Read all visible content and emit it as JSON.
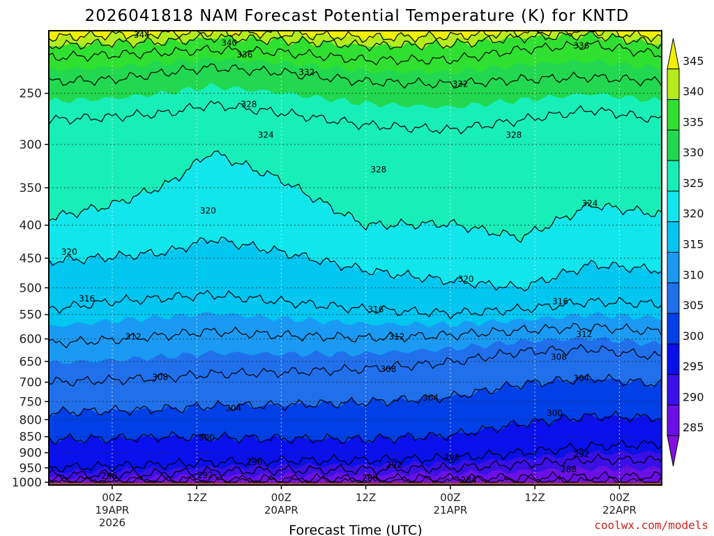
{
  "title": "2026041818 NAM Forecast Potential Temperature (K) for KNTD",
  "xlabel": "Forecast Time (UTC)",
  "credit": "coolwx.com/models",
  "chart_data": {
    "type": "heatmap",
    "title": "2026041818 NAM Forecast Potential Temperature (K) for KNTD",
    "xlabel": "Forecast Time (UTC)",
    "ylabel": "",
    "y_axis": {
      "name": "pressure",
      "scale": "log",
      "reversed": true,
      "range": [
        1010,
        200
      ],
      "ticks": [
        250,
        300,
        350,
        400,
        450,
        500,
        550,
        600,
        650,
        700,
        750,
        800,
        850,
        900,
        950,
        1000
      ]
    },
    "x_axis": {
      "range_hours": [
        -3,
        84
      ],
      "ticks": [
        {
          "hour": 6,
          "label": "00Z",
          "sub1": "19APR",
          "sub2": "2026"
        },
        {
          "hour": 18,
          "label": "12Z",
          "sub1": "",
          "sub2": ""
        },
        {
          "hour": 30,
          "label": "00Z",
          "sub1": "20APR",
          "sub2": ""
        },
        {
          "hour": 42,
          "label": "12Z",
          "sub1": "",
          "sub2": ""
        },
        {
          "hour": 54,
          "label": "00Z",
          "sub1": "21APR",
          "sub2": ""
        },
        {
          "hour": 66,
          "label": "12Z",
          "sub1": "",
          "sub2": ""
        },
        {
          "hour": 78,
          "label": "00Z",
          "sub1": "22APR",
          "sub2": ""
        }
      ]
    },
    "grid": true,
    "colorbar": {
      "ticks": [
        345,
        340,
        335,
        330,
        325,
        320,
        315,
        310,
        305,
        300,
        295,
        290,
        285
      ],
      "levels": [
        {
          "min": 280,
          "max": 285,
          "color": "#8410e0"
        },
        {
          "min": 285,
          "max": 290,
          "color": "#6a10e6"
        },
        {
          "min": 290,
          "max": 295,
          "color": "#3a10e8"
        },
        {
          "min": 295,
          "max": 300,
          "color": "#0a10ec"
        },
        {
          "min": 300,
          "max": 305,
          "color": "#0040e6"
        },
        {
          "min": 305,
          "max": 310,
          "color": "#2070ec"
        },
        {
          "min": 310,
          "max": 315,
          "color": "#1a9af2"
        },
        {
          "min": 315,
          "max": 320,
          "color": "#00c6f0"
        },
        {
          "min": 320,
          "max": 325,
          "color": "#10e6ec"
        },
        {
          "min": 325,
          "max": 330,
          "color": "#18eeb8"
        },
        {
          "min": 330,
          "max": 335,
          "color": "#22d850"
        },
        {
          "min": 335,
          "max": 340,
          "color": "#30e030"
        },
        {
          "min": 340,
          "max": 345,
          "color": "#b4ec1c"
        },
        {
          "min": 345,
          "max": 350,
          "color": "#f0f000"
        }
      ]
    },
    "ground_color": "#a0522d",
    "isentropes": [
      {
        "theta": 284,
        "pressure": [
          999,
          999,
          998,
          998,
          997,
          997,
          996,
          997,
          998,
          999
        ]
      },
      {
        "theta": 288,
        "pressure": [
          992,
          992,
          991,
          990,
          989,
          987,
          986,
          984,
          981,
          979
        ]
      },
      {
        "theta": 292,
        "pressure": [
          975,
          972,
          968,
          962,
          958,
          956,
          950,
          938,
          922,
          925
        ]
      },
      {
        "theta": 296,
        "pressure": [
          950,
          944,
          938,
          932,
          926,
          924,
          918,
          900,
          880,
          872
        ]
      },
      {
        "theta": 300,
        "pressure": [
          858,
          856,
          850,
          852,
          856,
          858,
          846,
          812,
          790,
          795
        ]
      },
      {
        "theta": 304,
        "pressure": [
          780,
          775,
          770,
          762,
          760,
          752,
          738,
          705,
          690,
          705
        ]
      },
      {
        "theta": 308,
        "pressure": [
          700,
          695,
          688,
          680,
          676,
          668,
          652,
          628,
          622,
          640
        ]
      },
      {
        "theta": 312,
        "pressure": [
          610,
          602,
          592,
          584,
          592,
          598,
          592,
          582,
          575,
          585
        ]
      },
      {
        "theta": 316,
        "pressure": [
          540,
          525,
          518,
          512,
          525,
          540,
          548,
          540,
          525,
          530
        ]
      },
      {
        "theta": 320,
        "pressure": [
          455,
          448,
          440,
          420,
          440,
          470,
          488,
          500,
          460,
          470
        ]
      },
      {
        "theta": 324,
        "pressure": [
          390,
          372,
          345,
          308,
          340,
          400,
          398,
          418,
          372,
          385
        ]
      },
      {
        "theta": 328,
        "pressure": [
          275,
          272,
          268,
          260,
          268,
          280,
          285,
          275,
          265,
          275
        ]
      },
      {
        "theta": 332,
        "pressure": [
          240,
          238,
          232,
          228,
          232,
          240,
          242,
          238,
          236,
          240
        ]
      },
      {
        "theta": 336,
        "pressure": [
          220,
          218,
          216,
          214,
          216,
          222,
          222,
          214,
          210,
          218
        ]
      },
      {
        "theta": 340,
        "pressure": [
          211,
          209,
          208,
          205,
          207,
          211,
          210,
          205,
          203,
          210
        ]
      },
      {
        "theta": 344,
        "pressure": [
          205,
          203,
          202,
          201,
          202,
          205,
          204,
          201,
          200,
          205
        ]
      }
    ],
    "isentrope_hours": [
      -3,
      6,
      14,
      20,
      30,
      42,
      54,
      64,
      74,
      84
    ],
    "contour_labels": [
      {
        "text": "344",
        "hour": 10.2,
        "p": 203
      },
      {
        "text": "340",
        "hour": 22.6,
        "p": 209
      },
      {
        "text": "336",
        "hour": 24.8,
        "p": 218
      },
      {
        "text": "332",
        "hour": 33.6,
        "p": 232
      },
      {
        "text": "328",
        "hour": 25.4,
        "p": 260
      },
      {
        "text": "324",
        "hour": 27.8,
        "p": 290
      },
      {
        "text": "320",
        "hour": 19.6,
        "p": 380
      },
      {
        "text": "320",
        "hour": -0.1,
        "p": 440
      },
      {
        "text": "316",
        "hour": 2.4,
        "p": 520
      },
      {
        "text": "312",
        "hour": 9.0,
        "p": 595
      },
      {
        "text": "308",
        "hour": 12.8,
        "p": 688
      },
      {
        "text": "304",
        "hour": 23.2,
        "p": 768
      },
      {
        "text": "300",
        "hour": 19.4,
        "p": 853
      },
      {
        "text": "296",
        "hour": 26.2,
        "p": 930
      },
      {
        "text": "296",
        "hour": 5.6,
        "p": 978
      },
      {
        "text": "292",
        "hour": 19.2,
        "p": 975
      },
      {
        "text": "288",
        "hour": 42.6,
        "p": 985
      },
      {
        "text": "292",
        "hour": 46.0,
        "p": 940
      },
      {
        "text": "296",
        "hour": 54.2,
        "p": 915
      },
      {
        "text": "300",
        "hour": 68.8,
        "p": 782
      },
      {
        "text": "304",
        "hour": 72.6,
        "p": 690
      },
      {
        "text": "308",
        "hour": 69.4,
        "p": 640
      },
      {
        "text": "312",
        "hour": 73.0,
        "p": 590
      },
      {
        "text": "316",
        "hour": 69.6,
        "p": 525
      },
      {
        "text": "320",
        "hour": 56.2,
        "p": 485
      },
      {
        "text": "324",
        "hour": 73.8,
        "p": 370
      },
      {
        "text": "328",
        "hour": 63.0,
        "p": 290
      },
      {
        "text": "328",
        "hour": 43.8,
        "p": 328
      },
      {
        "text": "332",
        "hour": 55.4,
        "p": 242
      },
      {
        "text": "336",
        "hour": 72.6,
        "p": 211
      },
      {
        "text": "316",
        "hour": 43.4,
        "p": 540
      },
      {
        "text": "312",
        "hour": 46.4,
        "p": 595
      },
      {
        "text": "308",
        "hour": 45.2,
        "p": 668
      },
      {
        "text": "304",
        "hour": 51.2,
        "p": 740
      },
      {
        "text": "292",
        "hour": 72.6,
        "p": 905
      },
      {
        "text": "288",
        "hour": 70.8,
        "p": 955
      },
      {
        "text": "284",
        "hour": 56.6,
        "p": 992
      }
    ]
  }
}
